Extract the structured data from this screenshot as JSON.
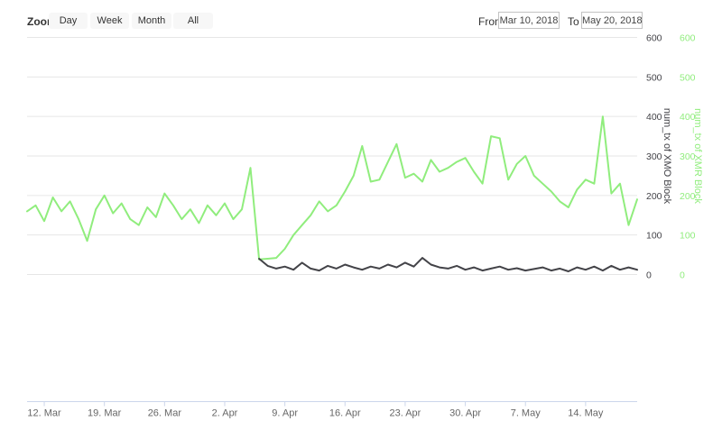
{
  "range_selector": {
    "zoom_label": "Zoom",
    "buttons": [
      {
        "label": "Day"
      },
      {
        "label": "Week"
      },
      {
        "label": "Month"
      },
      {
        "label": "All"
      }
    ],
    "from_label": "From",
    "from_value": "Mar 10, 2018",
    "to_label": "To",
    "to_value": "May 20, 2018"
  },
  "colors": {
    "background": "#ffffff",
    "grid": "#e6e6e6",
    "axis_line": "#ccd6eb",
    "x_label": "#666666",
    "xmo": "#434348",
    "xmr": "#90ed7d",
    "button_bg": "#f7f7f7",
    "button_text": "#333333"
  },
  "chart_data": {
    "type": "line",
    "title": "",
    "grid": true,
    "legend": "none",
    "ylim": [
      0,
      600
    ],
    "y_ticks": [
      0,
      100,
      200,
      300,
      400,
      500,
      600
    ],
    "x_ticks": [
      {
        "label": "12. Mar",
        "day": 2
      },
      {
        "label": "19. Mar",
        "day": 9
      },
      {
        "label": "26. Mar",
        "day": 16
      },
      {
        "label": "2. Apr",
        "day": 23
      },
      {
        "label": "9. Apr",
        "day": 30
      },
      {
        "label": "16. Apr",
        "day": 37
      },
      {
        "label": "23. Apr",
        "day": 44
      },
      {
        "label": "30. Apr",
        "day": 51
      },
      {
        "label": "7. May",
        "day": 58
      },
      {
        "label": "14. May",
        "day": 65
      }
    ],
    "y_axes": [
      {
        "title": "num_tx of XMO Block",
        "color": "#434348"
      },
      {
        "title": "num_tx of XMR Block",
        "color": "#90ed7d"
      }
    ],
    "dates": [
      "2018-03-10",
      "2018-03-11",
      "2018-03-12",
      "2018-03-13",
      "2018-03-14",
      "2018-03-15",
      "2018-03-16",
      "2018-03-17",
      "2018-03-18",
      "2018-03-19",
      "2018-03-20",
      "2018-03-21",
      "2018-03-22",
      "2018-03-23",
      "2018-03-24",
      "2018-03-25",
      "2018-03-26",
      "2018-03-27",
      "2018-03-28",
      "2018-03-29",
      "2018-03-30",
      "2018-03-31",
      "2018-04-01",
      "2018-04-02",
      "2018-04-03",
      "2018-04-04",
      "2018-04-05",
      "2018-04-06",
      "2018-04-07",
      "2018-04-08",
      "2018-04-09",
      "2018-04-10",
      "2018-04-11",
      "2018-04-12",
      "2018-04-13",
      "2018-04-14",
      "2018-04-15",
      "2018-04-16",
      "2018-04-17",
      "2018-04-18",
      "2018-04-19",
      "2018-04-20",
      "2018-04-21",
      "2018-04-22",
      "2018-04-23",
      "2018-04-24",
      "2018-04-25",
      "2018-04-26",
      "2018-04-27",
      "2018-04-28",
      "2018-04-29",
      "2018-04-30",
      "2018-05-01",
      "2018-05-02",
      "2018-05-03",
      "2018-05-04",
      "2018-05-05",
      "2018-05-06",
      "2018-05-07",
      "2018-05-08",
      "2018-05-09",
      "2018-05-10",
      "2018-05-11",
      "2018-05-12",
      "2018-05-13",
      "2018-05-14",
      "2018-05-15",
      "2018-05-16",
      "2018-05-17",
      "2018-05-18",
      "2018-05-19",
      "2018-05-20"
    ],
    "series": [
      {
        "id": "xmr",
        "name": "num_tx of XMR Block",
        "color": "#90ed7d",
        "values": [
          160,
          175,
          135,
          195,
          160,
          185,
          140,
          85,
          165,
          200,
          155,
          180,
          140,
          125,
          170,
          145,
          205,
          175,
          140,
          165,
          130,
          175,
          150,
          180,
          140,
          165,
          270,
          38,
          40,
          42,
          65,
          100,
          125,
          150,
          185,
          160,
          175,
          210,
          250,
          325,
          235,
          240,
          285,
          330,
          245,
          255,
          235,
          290,
          260,
          270,
          285,
          295,
          260,
          230,
          350,
          345,
          240,
          280,
          300,
          250,
          230,
          210,
          185,
          170,
          215,
          240,
          230,
          400,
          205,
          230,
          125,
          190
        ]
      },
      {
        "id": "xmo",
        "name": "num_tx of XMO Block",
        "color": "#434348",
        "values": [
          null,
          null,
          null,
          null,
          null,
          null,
          null,
          null,
          null,
          null,
          null,
          null,
          null,
          null,
          null,
          null,
          null,
          null,
          null,
          null,
          null,
          null,
          null,
          null,
          null,
          null,
          null,
          40,
          22,
          15,
          20,
          12,
          30,
          15,
          10,
          22,
          15,
          25,
          18,
          12,
          20,
          15,
          25,
          18,
          30,
          20,
          42,
          25,
          18,
          15,
          22,
          12,
          18,
          10,
          15,
          20,
          12,
          16,
          10,
          14,
          18,
          10,
          15,
          8,
          18,
          12,
          20,
          10,
          22,
          12,
          18,
          12
        ]
      }
    ]
  }
}
